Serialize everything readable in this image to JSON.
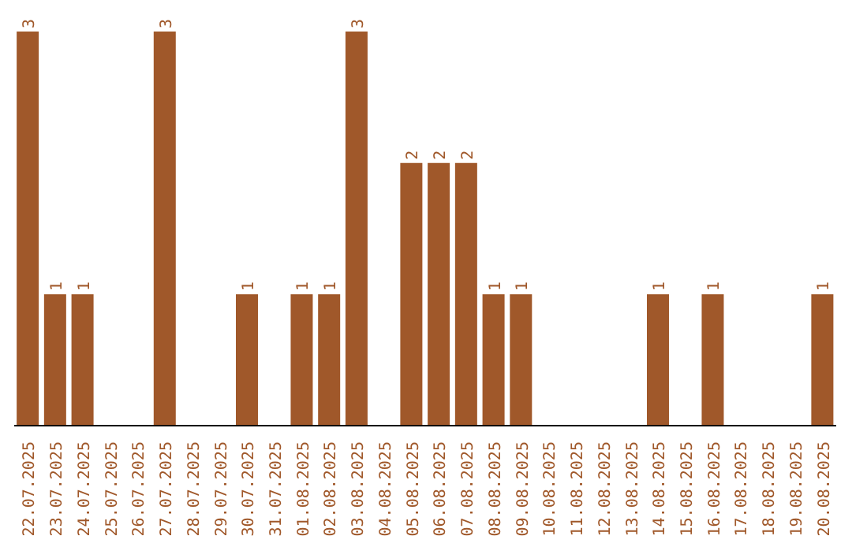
{
  "chart_data": {
    "type": "bar",
    "categories": [
      "22.07.2025",
      "23.07.2025",
      "24.07.2025",
      "25.07.2025",
      "26.07.2025",
      "27.07.2025",
      "28.07.2025",
      "29.07.2025",
      "30.07.2025",
      "31.07.2025",
      "01.08.2025",
      "02.08.2025",
      "03.08.2025",
      "04.08.2025",
      "05.08.2025",
      "06.08.2025",
      "07.08.2025",
      "08.08.2025",
      "09.08.2025",
      "10.08.2025",
      "11.08.2025",
      "12.08.2025",
      "13.08.2025",
      "14.08.2025",
      "15.08.2025",
      "16.08.2025",
      "17.08.2025",
      "18.08.2025",
      "19.08.2025",
      "20.08.2025"
    ],
    "values": [
      3,
      1,
      1,
      0,
      0,
      3,
      0,
      0,
      1,
      0,
      1,
      1,
      3,
      0,
      2,
      2,
      2,
      1,
      1,
      0,
      0,
      0,
      0,
      1,
      0,
      1,
      0,
      0,
      0,
      1
    ],
    "value_labels": [
      "3",
      "1",
      "1",
      null,
      null,
      "3",
      null,
      null,
      "1",
      null,
      "1",
      "1",
      "3",
      null,
      "2",
      "2",
      "2",
      "1",
      "1",
      null,
      null,
      null,
      null,
      "1",
      null,
      "1",
      null,
      null,
      null,
      "1"
    ],
    "color": "#a0582a",
    "tick_labels": "x",
    "grid": false,
    "legend": false
  }
}
